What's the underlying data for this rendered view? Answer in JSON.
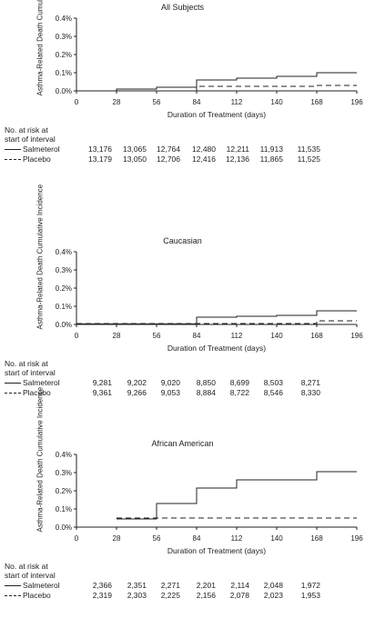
{
  "chart_data": [
    {
      "type": "line",
      "title": "All Subjects",
      "xlabel": "Duration of Treatment (days)",
      "ylabel": "Asthma-Related Death Cumulative Incidence",
      "x_ticks": [
        "0",
        "28",
        "56",
        "84",
        "112",
        "140",
        "168",
        "196"
      ],
      "y_ticks": [
        "0.0%",
        "0.1%",
        "0.2%",
        "0.3%",
        "0.4%"
      ],
      "xlim": [
        0,
        196
      ],
      "ylim": [
        0,
        0.4
      ],
      "series": [
        {
          "name": "Salmeterol",
          "style": "solid",
          "steps": [
            [
              0,
              0
            ],
            [
              28,
              0.01
            ],
            [
              56,
              0.02
            ],
            [
              84,
              0.06
            ],
            [
              112,
              0.07
            ],
            [
              140,
              0.08
            ],
            [
              168,
              0.1
            ],
            [
              196,
              0.1
            ]
          ]
        },
        {
          "name": "Placebo",
          "style": "dashed",
          "steps": [
            [
              0,
              0
            ],
            [
              84,
              0.025
            ],
            [
              168,
              0.03
            ],
            [
              196,
              0.03
            ]
          ]
        }
      ],
      "risk_table": {
        "header": "No. at risk at\nstart of interval",
        "rows": [
          {
            "name": "Salmeterol",
            "style": "solid",
            "values": [
              "13,176",
              "13,065",
              "12,764",
              "12,480",
              "12,211",
              "11,913",
              "11,535"
            ]
          },
          {
            "name": "Placebo",
            "style": "dashed",
            "values": [
              "13,179",
              "13,050",
              "12,706",
              "12,416",
              "12,136",
              "11,865",
              "11,525"
            ]
          }
        ]
      }
    },
    {
      "type": "line",
      "title": "Caucasian",
      "xlabel": "Duration of Treatment (days)",
      "ylabel": "Asthma-Related Death Cumulative Incidence",
      "x_ticks": [
        "0",
        "28",
        "56",
        "84",
        "112",
        "140",
        "168",
        "196"
      ],
      "y_ticks": [
        "0.0%",
        "0.1%",
        "0.2%",
        "0.3%",
        "0.4%"
      ],
      "xlim": [
        0,
        196
      ],
      "ylim": [
        0,
        0.4
      ],
      "series": [
        {
          "name": "Salmeterol",
          "style": "solid",
          "steps": [
            [
              0,
              0.003
            ],
            [
              84,
              0.04
            ],
            [
              112,
              0.045
            ],
            [
              140,
              0.05
            ],
            [
              168,
              0.075
            ],
            [
              196,
              0.075
            ]
          ]
        },
        {
          "name": "Placebo",
          "style": "dashed",
          "steps": [
            [
              0,
              0.005
            ],
            [
              168,
              0.02
            ],
            [
              196,
              0.02
            ]
          ]
        }
      ],
      "risk_table": {
        "header": "No. at risk at\nstart of interval",
        "rows": [
          {
            "name": "Salmeterol",
            "style": "solid",
            "values": [
              "9,281",
              "9,202",
              "9,020",
              "8,850",
              "8,699",
              "8,503",
              "8,271"
            ]
          },
          {
            "name": "Placebo",
            "style": "dashed",
            "values": [
              "9,361",
              "9,266",
              "9,053",
              "8,884",
              "8,722",
              "8,546",
              "8,330"
            ]
          }
        ]
      }
    },
    {
      "type": "line",
      "title": "African American",
      "xlabel": "Duration of Treatment (days)",
      "ylabel": "Asthma-Related Death Cumulative Incidence",
      "x_ticks": [
        "0",
        "28",
        "56",
        "84",
        "112",
        "140",
        "168",
        "196"
      ],
      "y_ticks": [
        "0.0%",
        "0.1%",
        "0.2%",
        "0.3%",
        "0.4%"
      ],
      "xlim": [
        0,
        196
      ],
      "ylim": [
        0,
        0.4
      ],
      "series": [
        {
          "name": "Salmeterol",
          "style": "solid",
          "steps": [
            [
              28,
              0.045
            ],
            [
              56,
              0.13
            ],
            [
              84,
              0.215
            ],
            [
              112,
              0.26
            ],
            [
              168,
              0.305
            ],
            [
              196,
              0.305
            ]
          ]
        },
        {
          "name": "Placebo",
          "style": "dashed",
          "steps": [
            [
              28,
              0.05
            ],
            [
              196,
              0.05
            ]
          ]
        }
      ],
      "risk_table": {
        "header": "No. at risk at\nstart of interval",
        "rows": [
          {
            "name": "Salmeterol",
            "style": "solid",
            "values": [
              "2,366",
              "2,351",
              "2,271",
              "2,201",
              "2,114",
              "2,048",
              "1,972"
            ]
          },
          {
            "name": "Placebo",
            "style": "dashed",
            "values": [
              "2,319",
              "2,303",
              "2,225",
              "2,156",
              "2,078",
              "2,023",
              "1,953"
            ]
          }
        ]
      }
    }
  ]
}
